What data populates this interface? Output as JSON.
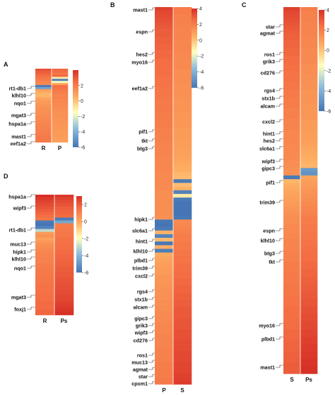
{
  "chart_data": [
    {
      "type": "heatmap",
      "panel_label": "A",
      "columns": [
        "R",
        "P"
      ],
      "colorbar_ticks": [
        2,
        0,
        -2,
        -4,
        -6
      ],
      "color_range": [
        -6,
        4
      ],
      "row_labels": [
        "rt1-db1",
        "klhl10",
        "nqo1",
        "mgat3",
        "hspa1a",
        "mast1",
        "eef1a2"
      ],
      "values": [
        [
          3.2,
          2.6
        ],
        [
          2.9,
          2.4
        ],
        [
          2.7,
          2.2
        ],
        [
          2.5,
          2.6
        ],
        [
          2.2,
          -1.0
        ],
        [
          2.0,
          -5.8
        ],
        [
          1.8,
          -1.5
        ],
        [
          1.6,
          0.8
        ],
        [
          -5.8,
          2.4
        ],
        [
          -4.5,
          2.3
        ],
        [
          1.0,
          2.1
        ],
        [
          0.6,
          2.0
        ],
        [
          0.3,
          1.9
        ],
        [
          0.4,
          1.8
        ],
        [
          0.8,
          1.8
        ],
        [
          1.0,
          1.7
        ],
        [
          1.1,
          1.7
        ],
        [
          1.2,
          1.6
        ],
        [
          1.3,
          1.6
        ],
        [
          1.4,
          1.5
        ],
        [
          1.4,
          1.5
        ],
        [
          1.5,
          1.4
        ],
        [
          1.5,
          1.4
        ],
        [
          1.6,
          1.4
        ],
        [
          1.6,
          1.3
        ],
        [
          1.7,
          1.3
        ],
        [
          1.7,
          1.3
        ],
        [
          1.8,
          1.2
        ],
        [
          1.8,
          1.2
        ],
        [
          1.9,
          1.2
        ],
        [
          1.9,
          1.1
        ],
        [
          2.0,
          1.1
        ],
        [
          2.0,
          1.1
        ],
        [
          2.1,
          1.0
        ],
        [
          2.1,
          1.0
        ],
        [
          2.2,
          1.0
        ]
      ]
    },
    {
      "type": "heatmap",
      "panel_label": "B",
      "columns": [
        "P",
        "S"
      ],
      "colorbar_ticks": [
        4,
        2,
        0,
        -2,
        -4,
        -6
      ],
      "color_range": [
        -6,
        4
      ],
      "row_labels": [
        "mast1",
        "espn",
        "hes2",
        "myo16",
        "eef1a2",
        "pif1",
        "tkt",
        "btg3",
        "hipk1",
        "slc6a1",
        "hint1",
        "klhl10",
        "plbd1",
        "trim39",
        "cxcl2",
        "rgs4",
        "stx1b",
        "alcam",
        "gipc3",
        "grik3",
        "wipf3",
        "cd276",
        "ros1",
        "muc13",
        "agmat",
        "star",
        "cpxm1"
      ],
      "values": [
        [
          3.6,
          2.0
        ],
        [
          3.4,
          2.0
        ],
        [
          3.3,
          1.9
        ],
        [
          3.2,
          1.9
        ],
        [
          3.1,
          1.9
        ],
        [
          3.0,
          1.8
        ],
        [
          2.9,
          1.8
        ],
        [
          2.9,
          1.8
        ],
        [
          2.8,
          1.8
        ],
        [
          2.8,
          1.7
        ],
        [
          2.7,
          1.7
        ],
        [
          2.7,
          1.7
        ],
        [
          2.6,
          1.7
        ],
        [
          2.6,
          1.6
        ],
        [
          2.5,
          1.6
        ],
        [
          2.5,
          1.6
        ],
        [
          2.4,
          1.6
        ],
        [
          2.4,
          1.5
        ],
        [
          2.4,
          1.5
        ],
        [
          2.3,
          1.5
        ],
        [
          2.3,
          1.5
        ],
        [
          2.3,
          1.4
        ],
        [
          2.2,
          1.4
        ],
        [
          2.2,
          1.4
        ],
        [
          2.2,
          1.4
        ],
        [
          2.1,
          1.3
        ],
        [
          2.1,
          1.3
        ],
        [
          2.1,
          1.3
        ],
        [
          2.1,
          1.3
        ],
        [
          2.0,
          1.2
        ],
        [
          2.0,
          1.2
        ],
        [
          2.0,
          1.2
        ],
        [
          2.0,
          1.2
        ],
        [
          1.9,
          1.1
        ],
        [
          1.9,
          1.1
        ],
        [
          1.9,
          1.1
        ],
        [
          1.9,
          1.0
        ],
        [
          1.8,
          1.0
        ],
        [
          1.8,
          1.0
        ],
        [
          1.8,
          0.9
        ],
        [
          1.8,
          0.9
        ],
        [
          1.7,
          0.8
        ],
        [
          1.7,
          0.7
        ],
        [
          1.7,
          0.6
        ],
        [
          1.7,
          0.5
        ],
        [
          1.6,
          0.3
        ],
        [
          1.6,
          0.2
        ],
        [
          1.6,
          -5.8
        ],
        [
          1.6,
          0.1
        ],
        [
          1.6,
          0.4
        ],
        [
          1.5,
          -5.6
        ],
        [
          1.5,
          -1.0
        ],
        [
          1.5,
          -5.8
        ],
        [
          1.5,
          -6.0
        ],
        [
          1.5,
          -6.0
        ],
        [
          1.5,
          -6.0
        ],
        [
          1.5,
          -6.0
        ],
        [
          1.4,
          -5.9
        ],
        [
          -5.9,
          1.6
        ],
        [
          -6.0,
          1.7
        ],
        [
          -5.8,
          1.8
        ],
        [
          0.4,
          1.9
        ],
        [
          -5.5,
          2.0
        ],
        [
          0.2,
          2.0
        ],
        [
          -5.9,
          2.1
        ],
        [
          0.5,
          2.1
        ],
        [
          -5.7,
          2.2
        ],
        [
          0.6,
          2.2
        ],
        [
          0.8,
          2.3
        ],
        [
          0.9,
          2.3
        ],
        [
          1.0,
          2.4
        ],
        [
          1.1,
          2.4
        ],
        [
          1.1,
          2.5
        ],
        [
          1.2,
          2.5
        ],
        [
          1.2,
          2.6
        ],
        [
          1.3,
          2.6
        ],
        [
          1.3,
          2.7
        ],
        [
          1.4,
          2.7
        ],
        [
          1.4,
          2.8
        ],
        [
          1.4,
          2.8
        ],
        [
          1.5,
          2.9
        ],
        [
          1.5,
          2.9
        ],
        [
          1.5,
          3.0
        ],
        [
          1.6,
          3.0
        ],
        [
          1.6,
          3.0
        ],
        [
          1.6,
          3.1
        ],
        [
          1.7,
          3.1
        ],
        [
          1.7,
          3.1
        ],
        [
          1.7,
          3.2
        ],
        [
          1.8,
          3.2
        ],
        [
          1.8,
          3.2
        ],
        [
          1.8,
          3.3
        ],
        [
          1.8,
          3.3
        ],
        [
          1.9,
          3.3
        ],
        [
          1.9,
          3.4
        ],
        [
          1.9,
          3.4
        ],
        [
          1.9,
          3.4
        ],
        [
          2.0,
          3.5
        ],
        [
          2.0,
          3.5
        ],
        [
          2.0,
          3.5
        ],
        [
          2.0,
          3.6
        ],
        [
          2.1,
          3.6
        ],
        [
          2.1,
          3.7
        ]
      ]
    },
    {
      "type": "heatmap",
      "panel_label": "C",
      "columns": [
        "S",
        "Ps"
      ],
      "colorbar_ticks": [
        4,
        2,
        0,
        -2,
        -4,
        -6
      ],
      "color_range": [
        -6,
        4
      ],
      "row_labels": [
        "star",
        "agmat",
        "ros1",
        "grik3",
        "cd276",
        "rgs4",
        "stx1b",
        "alcam",
        "cxcl2",
        "hint1",
        "hes2",
        "slc6a1",
        "wipf3",
        "gipc3",
        "pif1",
        "trim39",
        "espn",
        "klhl10",
        "btg3",
        "tkt",
        "myo16",
        "plbd1",
        "mast1"
      ],
      "values": [
        [
          3.6,
          2.0
        ],
        [
          3.4,
          1.9
        ],
        [
          3.3,
          1.9
        ],
        [
          3.2,
          1.9
        ],
        [
          3.1,
          1.8
        ],
        [
          3.0,
          1.8
        ],
        [
          2.9,
          1.8
        ],
        [
          2.8,
          1.8
        ],
        [
          2.8,
          1.7
        ],
        [
          2.7,
          1.7
        ],
        [
          2.7,
          1.7
        ],
        [
          2.6,
          1.6
        ],
        [
          2.6,
          1.6
        ],
        [
          2.5,
          1.6
        ],
        [
          2.5,
          1.6
        ],
        [
          2.4,
          1.5
        ],
        [
          2.4,
          1.5
        ],
        [
          2.3,
          1.5
        ],
        [
          2.3,
          1.4
        ],
        [
          2.3,
          1.4
        ],
        [
          2.2,
          1.4
        ],
        [
          2.2,
          1.4
        ],
        [
          2.1,
          1.3
        ],
        [
          2.1,
          1.3
        ],
        [
          2.0,
          1.3
        ],
        [
          2.0,
          1.3
        ],
        [
          2.0,
          1.2
        ],
        [
          1.9,
          1.2
        ],
        [
          1.9,
          1.2
        ],
        [
          1.9,
          1.2
        ],
        [
          1.8,
          1.1
        ],
        [
          1.8,
          1.1
        ],
        [
          1.8,
          1.1
        ],
        [
          1.7,
          1.0
        ],
        [
          1.7,
          1.0
        ],
        [
          1.7,
          1.0
        ],
        [
          1.7,
          0.9
        ],
        [
          1.6,
          0.8
        ],
        [
          1.6,
          0.7
        ],
        [
          1.6,
          0.6
        ],
        [
          1.6,
          0.5
        ],
        [
          1.5,
          0.4
        ],
        [
          1.5,
          0.3
        ],
        [
          1.4,
          -4.8
        ],
        [
          1.4,
          -5.0
        ],
        [
          -5.8,
          0.8
        ],
        [
          0.3,
          1.0
        ],
        [
          0.5,
          1.1
        ],
        [
          0.7,
          1.2
        ],
        [
          0.8,
          1.3
        ],
        [
          0.9,
          1.4
        ],
        [
          1.0,
          1.5
        ],
        [
          1.1,
          1.6
        ],
        [
          1.2,
          1.7
        ],
        [
          1.3,
          1.8
        ],
        [
          1.4,
          1.9
        ],
        [
          1.5,
          2.0
        ],
        [
          1.5,
          2.0
        ],
        [
          1.6,
          2.1
        ],
        [
          1.6,
          2.1
        ],
        [
          1.7,
          2.2
        ],
        [
          1.7,
          2.2
        ],
        [
          1.8,
          2.3
        ],
        [
          1.8,
          2.3
        ],
        [
          1.8,
          2.4
        ],
        [
          1.9,
          2.4
        ],
        [
          1.9,
          2.5
        ],
        [
          1.9,
          2.5
        ],
        [
          2.0,
          2.6
        ],
        [
          2.0,
          2.6
        ],
        [
          2.0,
          2.7
        ],
        [
          2.1,
          2.7
        ],
        [
          2.1,
          2.8
        ],
        [
          2.1,
          2.8
        ],
        [
          2.2,
          2.9
        ],
        [
          2.2,
          2.9
        ],
        [
          2.2,
          3.0
        ],
        [
          2.3,
          3.0
        ],
        [
          2.3,
          3.1
        ],
        [
          2.3,
          3.1
        ],
        [
          2.4,
          3.2
        ],
        [
          2.4,
          3.2
        ],
        [
          2.4,
          3.3
        ],
        [
          2.5,
          3.3
        ],
        [
          2.5,
          3.4
        ],
        [
          2.5,
          3.4
        ],
        [
          2.6,
          3.5
        ],
        [
          2.6,
          3.5
        ],
        [
          2.6,
          3.6
        ],
        [
          2.7,
          3.6
        ],
        [
          2.7,
          3.7
        ],
        [
          2.7,
          3.7
        ],
        [
          2.8,
          3.8
        ],
        [
          2.8,
          3.8
        ],
        [
          2.8,
          3.9
        ],
        [
          2.9,
          3.9
        ],
        [
          2.9,
          4.0
        ],
        [
          2.9,
          4.0
        ]
      ]
    },
    {
      "type": "heatmap",
      "panel_label": "D",
      "columns": [
        "R",
        "Ps"
      ],
      "colorbar_ticks": [
        2,
        0,
        -2,
        -4,
        -6
      ],
      "color_range": [
        -6,
        3
      ],
      "row_labels": [
        "hspa1a",
        "wipf3",
        "rt1-db1",
        "muc13",
        "hipk1",
        "klhl10",
        "nqo1",
        "mgat3",
        "foxj1"
      ],
      "values": [
        [
          3.0,
          2.8
        ],
        [
          2.8,
          2.6
        ],
        [
          2.6,
          2.4
        ],
        [
          2.4,
          2.2
        ],
        [
          2.2,
          2.0
        ],
        [
          2.0,
          1.9
        ],
        [
          1.8,
          1.8
        ],
        [
          1.6,
          1.7
        ],
        [
          1.4,
          -5.8
        ],
        [
          -5.8,
          -4.5
        ],
        [
          -6.0,
          1.2
        ],
        [
          -5.6,
          1.3
        ],
        [
          -3.0,
          1.3
        ],
        [
          0.4,
          1.4
        ],
        [
          0.6,
          1.4
        ],
        [
          0.2,
          1.5
        ],
        [
          0.5,
          1.5
        ],
        [
          0.7,
          1.6
        ],
        [
          0.8,
          1.6
        ],
        [
          0.9,
          1.7
        ],
        [
          1.0,
          1.7
        ],
        [
          1.0,
          1.8
        ],
        [
          1.1,
          1.8
        ],
        [
          1.1,
          1.9
        ],
        [
          1.2,
          1.9
        ],
        [
          1.2,
          2.0
        ],
        [
          1.3,
          2.0
        ],
        [
          1.3,
          2.1
        ],
        [
          1.4,
          2.1
        ],
        [
          1.4,
          2.2
        ],
        [
          1.4,
          2.2
        ],
        [
          1.5,
          2.3
        ],
        [
          1.5,
          2.3
        ],
        [
          1.5,
          2.4
        ],
        [
          1.6,
          2.4
        ],
        [
          1.6,
          2.5
        ],
        [
          1.6,
          2.5
        ],
        [
          1.7,
          2.6
        ],
        [
          1.7,
          2.7
        ],
        [
          1.7,
          2.8
        ],
        [
          1.8,
          2.9
        ],
        [
          1.8,
          3.0
        ]
      ]
    }
  ]
}
